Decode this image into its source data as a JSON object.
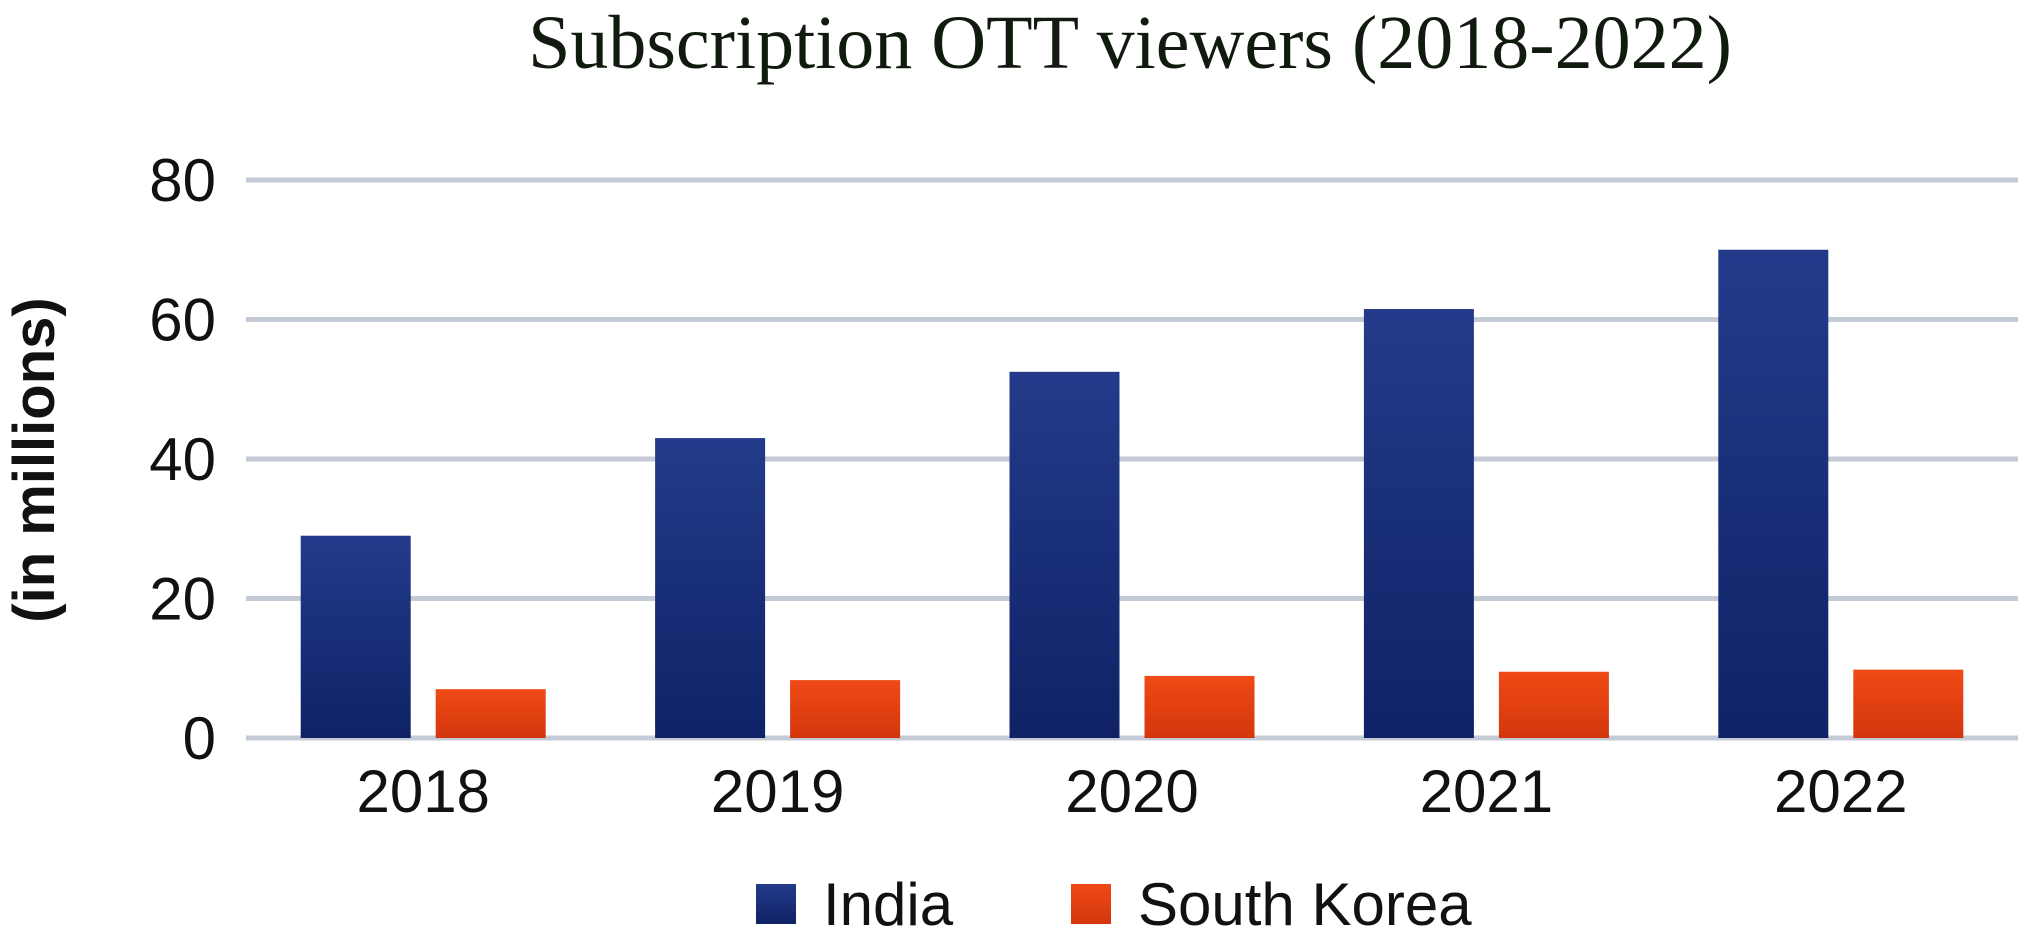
{
  "chart_data": {
    "type": "bar",
    "title": "Subscription OTT viewers (2018-2022)",
    "xlabel": "",
    "ylabel": "(in millions)",
    "categories": [
      "2018",
      "2019",
      "2020",
      "2021",
      "2022"
    ],
    "series": [
      {
        "name": "India",
        "values": [
          29,
          43,
          52.5,
          61.5,
          70
        ],
        "color": "#14296f"
      },
      {
        "name": "South Korea",
        "values": [
          7,
          8.3,
          8.9,
          9.5,
          9.8
        ],
        "color": "#e0400f"
      }
    ],
    "ylim": [
      0,
      80
    ],
    "yticks": [
      "0",
      "20",
      "40",
      "60",
      "80"
    ],
    "grid": true,
    "legend": "bottom-center"
  }
}
